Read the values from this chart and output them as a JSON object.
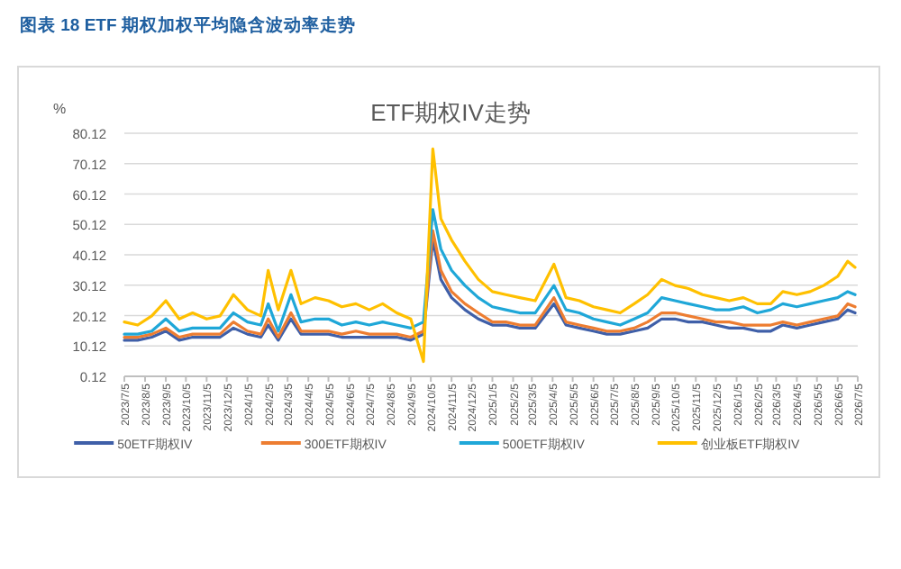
{
  "chart_data": {
    "type": "line",
    "title": "图表 18 ETF 期权加权平均隐含波动率走势",
    "subtitle": "ETF期权IV走势",
    "ylabel": "%",
    "x": [
      "2023-07-05",
      "2023-07-25",
      "2023-08-15",
      "2023-09-05",
      "2023-09-25",
      "2023-10-15",
      "2023-11-05",
      "2023-11-25",
      "2023-12-15",
      "2024-01-05",
      "2024-01-25",
      "2024-02-05",
      "2024-02-20",
      "2024-03-10",
      "2024-03-25",
      "2024-04-15",
      "2024-05-05",
      "2024-05-25",
      "2024-06-15",
      "2024-07-05",
      "2024-07-25",
      "2024-08-15",
      "2024-09-05",
      "2024-09-24",
      "2024-10-08",
      "2024-10-20",
      "2024-11-05",
      "2024-11-25",
      "2024-12-15",
      "2025-01-05",
      "2025-01-25",
      "2025-02-15",
      "2025-03-10",
      "2025-04-07",
      "2025-04-25",
      "2025-05-15",
      "2025-06-05",
      "2025-06-25",
      "2025-07-15",
      "2025-08-05",
      "2025-08-25",
      "2025-09-15",
      "2025-10-05",
      "2025-10-25",
      "2025-11-15",
      "2025-12-05",
      "2025-12-25",
      "2026-01-15",
      "2026-02-05",
      "2026-02-25",
      "2026-03-15",
      "2026-04-05",
      "2026-04-25",
      "2026-05-15",
      "2026-06-05",
      "2026-06-20",
      "2026-07-01"
    ],
    "series": [
      {
        "name": "50ETF期权IV",
        "color": "#3f5fa8",
        "values": [
          12,
          12,
          13,
          15,
          12,
          13,
          13,
          13,
          16,
          14,
          13,
          17,
          12,
          19,
          14,
          14,
          14,
          13,
          13,
          13,
          13,
          13,
          12,
          14,
          45,
          32,
          26,
          22,
          19,
          17,
          17,
          16,
          16,
          24,
          17,
          16,
          15,
          14,
          14,
          15,
          16,
          19,
          19,
          18,
          18,
          17,
          16,
          16,
          15,
          15,
          17,
          16,
          17,
          18,
          19,
          22,
          21
        ]
      },
      {
        "name": "300ETF期权IV",
        "color": "#ed7d31",
        "values": [
          13,
          13,
          14,
          16,
          13,
          14,
          14,
          14,
          18,
          15,
          14,
          19,
          13,
          21,
          15,
          15,
          15,
          14,
          15,
          14,
          14,
          14,
          13,
          15,
          48,
          35,
          28,
          24,
          21,
          18,
          18,
          17,
          17,
          26,
          18,
          17,
          16,
          15,
          15,
          16,
          18,
          21,
          21,
          20,
          19,
          18,
          18,
          17,
          17,
          17,
          18,
          17,
          18,
          19,
          20,
          24,
          23
        ]
      },
      {
        "name": "500ETF期权IV",
        "color": "#1fa7d8",
        "values": [
          14,
          14,
          15,
          19,
          15,
          16,
          16,
          16,
          21,
          18,
          17,
          24,
          15,
          27,
          18,
          19,
          19,
          17,
          18,
          17,
          18,
          17,
          16,
          18,
          55,
          42,
          35,
          30,
          26,
          23,
          22,
          21,
          21,
          30,
          22,
          21,
          19,
          18,
          17,
          19,
          21,
          26,
          25,
          24,
          23,
          22,
          22,
          23,
          21,
          22,
          24,
          23,
          24,
          25,
          26,
          28,
          27
        ]
      },
      {
        "name": "创业板ETF期权IV",
        "color": "#ffc000",
        "values": [
          18,
          17,
          20,
          25,
          19,
          21,
          19,
          20,
          27,
          22,
          20,
          35,
          22,
          35,
          24,
          26,
          25,
          23,
          24,
          22,
          24,
          21,
          19,
          5,
          75,
          52,
          45,
          38,
          32,
          28,
          27,
          26,
          25,
          37,
          26,
          25,
          23,
          22,
          21,
          24,
          27,
          32,
          30,
          29,
          27,
          26,
          25,
          26,
          24,
          24,
          28,
          27,
          28,
          30,
          33,
          38,
          36
        ]
      }
    ],
    "xlim": [
      "2023-07-05",
      "2026-07-05"
    ],
    "xticks": [
      {
        "value": "2023-07-05",
        "label": "2023/7/5"
      },
      {
        "value": "2023-08-05",
        "label": "2023/8/5"
      },
      {
        "value": "2023-09-05",
        "label": "2023/9/5"
      },
      {
        "value": "2023-10-05",
        "label": "2023/10/5"
      },
      {
        "value": "2023-11-05",
        "label": "2023/11/5"
      },
      {
        "value": "2023-12-05",
        "label": "2023/12/5"
      },
      {
        "value": "2024-01-05",
        "label": "2024/1/5"
      },
      {
        "value": "2024-02-05",
        "label": "2024/2/5"
      },
      {
        "value": "2024-03-05",
        "label": "2024/3/5"
      },
      {
        "value": "2024-04-05",
        "label": "2024/4/5"
      },
      {
        "value": "2024-05-05",
        "label": "2024/5/5"
      },
      {
        "value": "2024-06-05",
        "label": "2024/6/5"
      },
      {
        "value": "2024-07-05",
        "label": "2024/7/5"
      },
      {
        "value": "2024-08-05",
        "label": "2024/8/5"
      },
      {
        "value": "2024-09-05",
        "label": "2024/9/5"
      },
      {
        "value": "2024-10-05",
        "label": "2024/10/5"
      },
      {
        "value": "2024-11-05",
        "label": "2024/11/5"
      },
      {
        "value": "2024-12-05",
        "label": "2024/12/5"
      },
      {
        "value": "2025-01-05",
        "label": "2025/1/5"
      },
      {
        "value": "2025-02-05",
        "label": "2025/2/5"
      },
      {
        "value": "2025-03-05",
        "label": "2025/3/5"
      },
      {
        "value": "2025-04-05",
        "label": "2025/4/5"
      },
      {
        "value": "2025-05-05",
        "label": "2025/5/5"
      },
      {
        "value": "2025-06-05",
        "label": "2025/6/5"
      },
      {
        "value": "2025-07-05",
        "label": "2025/7/5"
      },
      {
        "value": "2025-08-05",
        "label": "2025/8/5"
      },
      {
        "value": "2025-09-05",
        "label": "2025/9/5"
      },
      {
        "value": "2025-10-05",
        "label": "2025/10/5"
      },
      {
        "value": "2025-11-05",
        "label": "2025/11/5"
      },
      {
        "value": "2025-12-05",
        "label": "2025/12/5"
      },
      {
        "value": "2026-01-05",
        "label": "2026/1/5"
      },
      {
        "value": "2026-02-05",
        "label": "2026/2/5"
      },
      {
        "value": "2026-03-05",
        "label": "2026/3/5"
      },
      {
        "value": "2026-04-05",
        "label": "2026/4/5"
      },
      {
        "value": "2026-05-05",
        "label": "2026/5/5"
      },
      {
        "value": "2026-06-05",
        "label": "2026/6/5"
      },
      {
        "value": "2026-07-05",
        "label": "2026/7/5"
      }
    ],
    "ylim": [
      0.12,
      80.12
    ],
    "yticks": [
      0.12,
      10.12,
      20.12,
      30.12,
      40.12,
      50.12,
      60.12,
      70.12,
      80.12
    ],
    "grid": "y",
    "legend": "bottom",
    "marker": "none",
    "line_style": "solid"
  }
}
